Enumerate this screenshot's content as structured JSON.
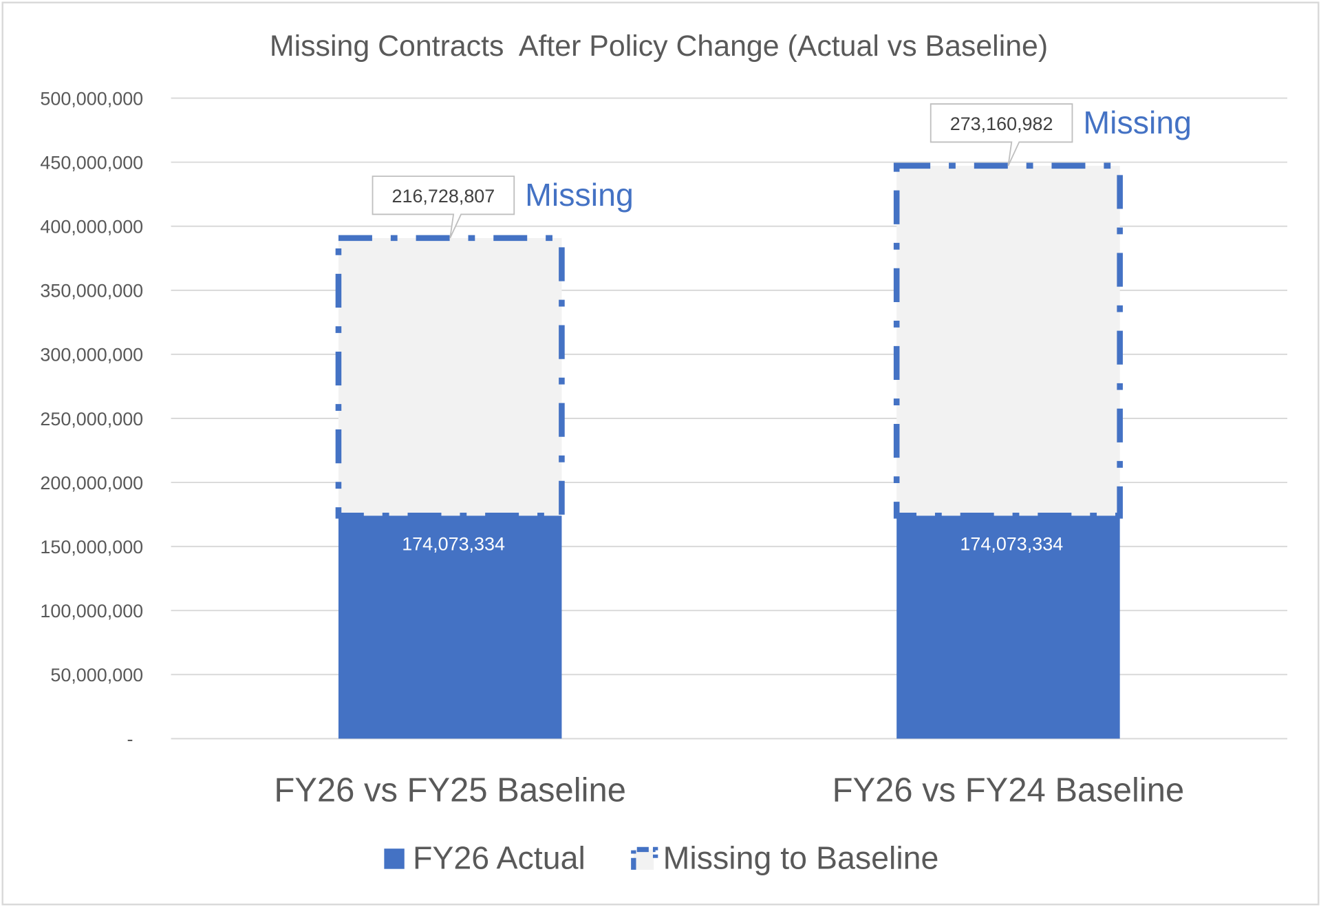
{
  "chart_data": {
    "type": "bar",
    "stacked": true,
    "title": "Missing Contracts  After Policy Change (Actual vs Baseline)",
    "xlabel": "",
    "ylabel": "",
    "ylim": [
      0,
      500000000
    ],
    "yticks": [
      0,
      50000000,
      100000000,
      150000000,
      200000000,
      250000000,
      300000000,
      350000000,
      400000000,
      450000000,
      500000000
    ],
    "ytick_labels": [
      "-",
      "50,000,000",
      "100,000,000",
      "150,000,000",
      "200,000,000",
      "250,000,000",
      "300,000,000",
      "350,000,000",
      "400,000,000",
      "450,000,000",
      "500,000,000"
    ],
    "grid": true,
    "legend_position": "bottom",
    "categories": [
      "FY26 vs FY25 Baseline",
      "FY26 vs FY24 Baseline"
    ],
    "series": [
      {
        "name": "FY26 Actual",
        "values": [
          174073334,
          174073334
        ],
        "labels": [
          "174,073,334",
          "174,073,334"
        ],
        "color": "#4472c4",
        "style": "solid"
      },
      {
        "name": "Missing to Baseline",
        "values": [
          216728807,
          273160982
        ],
        "labels": [
          "216,728,807",
          "273,160,982"
        ],
        "color": "#4472c4",
        "fill": "#f2f2f2",
        "style": "dash-dot outline"
      }
    ],
    "annotations": [
      "Missing",
      "Missing"
    ]
  }
}
